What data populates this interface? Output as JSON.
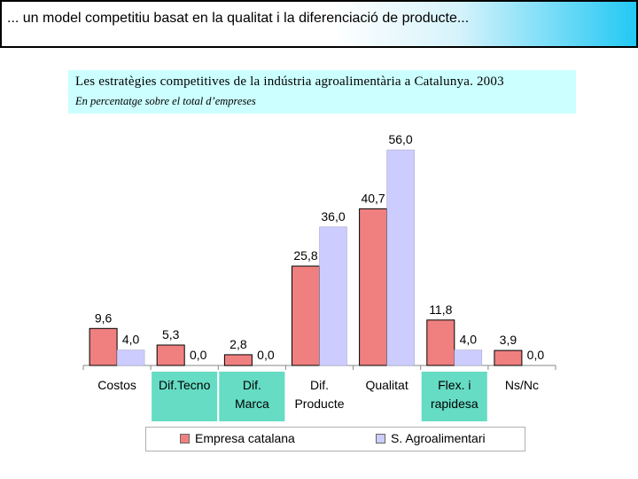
{
  "slide": {
    "title": "... un model competitiu basat en la qualitat i la diferenciació de producte..."
  },
  "colors": {
    "highlight": "#66dcc4",
    "series_1": "#f08080",
    "series_2": "#ccccff",
    "header_bg": "#ccffff"
  },
  "chart_data": {
    "type": "bar",
    "title": "Les estratègies competitives de la indústria agroalimentària a Catalunya. 2003",
    "subtitle": "En percentatge sobre el total d’empreses",
    "categories": [
      [
        "Costos"
      ],
      [
        "Dif.Tecno"
      ],
      [
        "Dif.",
        "Marca"
      ],
      [
        "Dif.",
        "Producte"
      ],
      [
        "Qualitat"
      ],
      [
        "Flex. i",
        "rapidesa"
      ],
      [
        "Ns/Nc"
      ]
    ],
    "highlighted_categories": [
      1,
      2,
      5
    ],
    "series": [
      {
        "name": "Empresa catalana",
        "color": "#f08080",
        "values": [
          9.6,
          5.3,
          2.8,
          25.8,
          40.7,
          11.8,
          3.9
        ],
        "labels": [
          "9,6",
          "5,3",
          "2,8",
          "25,8",
          "40,7",
          "11,8",
          "3,9"
        ]
      },
      {
        "name": "S. Agroalimentari",
        "color": "#ccccff",
        "values": [
          4.0,
          0.0,
          0.0,
          36.0,
          56.0,
          4.0,
          0.0
        ],
        "labels": [
          "4,0",
          "0,0",
          "0,0",
          "36,0",
          "56,0",
          "4,0",
          "0,0"
        ]
      }
    ],
    "ylim": [
      0,
      56
    ],
    "grid": false,
    "legend": "bottom"
  }
}
